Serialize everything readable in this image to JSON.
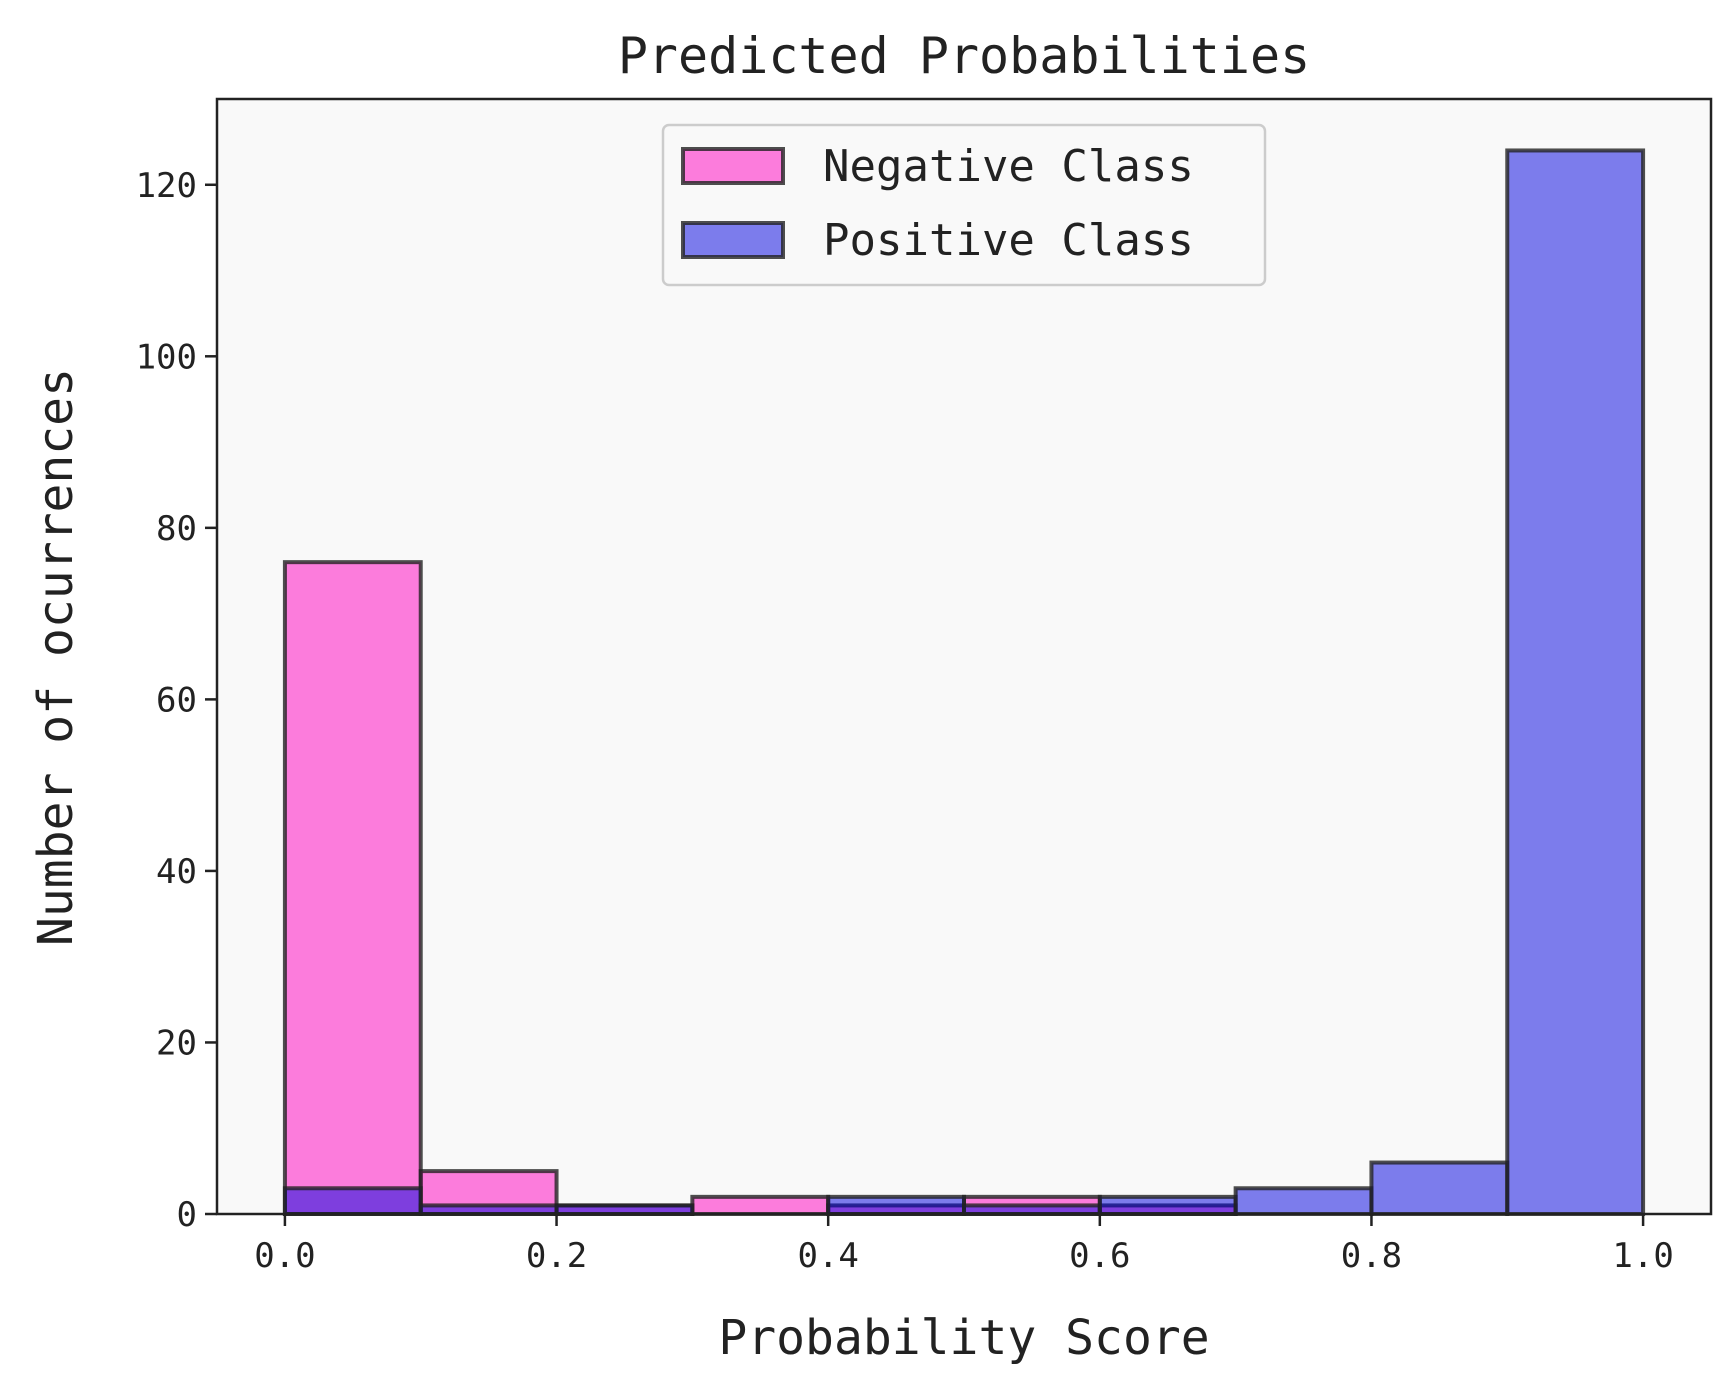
{
  "chart_data": {
    "type": "bar",
    "title": "Predicted Probabilities",
    "xlabel": "Probability Score",
    "ylabel": "Number of ocurrences",
    "bin_edges": [
      0.0,
      0.1,
      0.2,
      0.3,
      0.4,
      0.5,
      0.6,
      0.7,
      0.8,
      0.9,
      1.0
    ],
    "xlim": [
      -0.05,
      1.05
    ],
    "ylim": [
      0,
      130
    ],
    "xticks": [
      "0.0",
      "0.2",
      "0.4",
      "0.6",
      "0.8",
      "1.0"
    ],
    "yticks": [
      "0",
      "20",
      "40",
      "60",
      "80",
      "100",
      "120"
    ],
    "grid": false,
    "legend_position": "upper center",
    "background_color": "#f9f9f9",
    "series": [
      {
        "name": "Negative Class",
        "color": "#ff00bf",
        "values": [
          76,
          5,
          1,
          2,
          1,
          2,
          1,
          0,
          0,
          0
        ]
      },
      {
        "name": "Positive Class",
        "color": "#0000e0",
        "values": [
          3,
          1,
          1,
          0,
          2,
          1,
          2,
          3,
          6,
          124
        ]
      }
    ]
  }
}
